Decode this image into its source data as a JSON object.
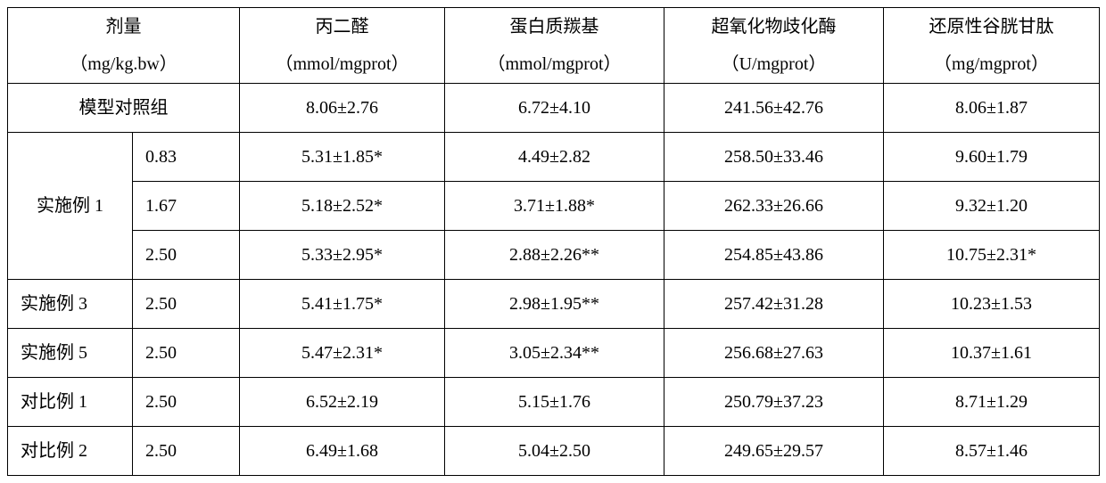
{
  "header": {
    "dose_label": "剂量",
    "dose_unit": "（mg/kg.bw）",
    "cols": [
      {
        "label": "丙二醛",
        "unit": "（mmol/mgprot）"
      },
      {
        "label": "蛋白质羰基",
        "unit": "（mmol/mgprot）"
      },
      {
        "label": "超氧化物歧化酶",
        "unit": "（U/mgprot）"
      },
      {
        "label": "还原性谷胱甘肽",
        "unit": "（mg/mgprot）"
      }
    ]
  },
  "model_row": {
    "label": "模型对照组",
    "values": [
      "8.06±2.76",
      "6.72±4.10",
      "241.56±42.76",
      "8.06±1.87"
    ]
  },
  "ex1": {
    "label": "实施例 1",
    "rows": [
      {
        "dose": "0.83",
        "values": [
          "5.31±1.85*",
          "4.49±2.82",
          "258.50±33.46",
          "9.60±1.79"
        ]
      },
      {
        "dose": "1.67",
        "values": [
          "5.18±2.52*",
          "3.71±1.88*",
          "262.33±26.66",
          "9.32±1.20"
        ]
      },
      {
        "dose": "2.50",
        "values": [
          "5.33±2.95*",
          "2.88±2.26**",
          "254.85±43.86",
          "10.75±2.31*"
        ]
      }
    ]
  },
  "single_rows": [
    {
      "label": "实施例 3",
      "dose": "2.50",
      "values": [
        "5.41±1.75*",
        "2.98±1.95**",
        "257.42±31.28",
        "10.23±1.53"
      ]
    },
    {
      "label": "实施例 5",
      "dose": "2.50",
      "values": [
        "5.47±2.31*",
        "3.05±2.34**",
        "256.68±27.63",
        "10.37±1.61"
      ]
    },
    {
      "label": "对比例 1",
      "dose": "2.50",
      "values": [
        "6.52±2.19",
        "5.15±1.76",
        "250.79±37.23",
        "8.71±1.29"
      ]
    },
    {
      "label": "对比例 2",
      "dose": "2.50",
      "values": [
        "6.49±1.68",
        "5.04±2.50",
        "249.65±29.57",
        "8.57±1.46"
      ]
    }
  ]
}
